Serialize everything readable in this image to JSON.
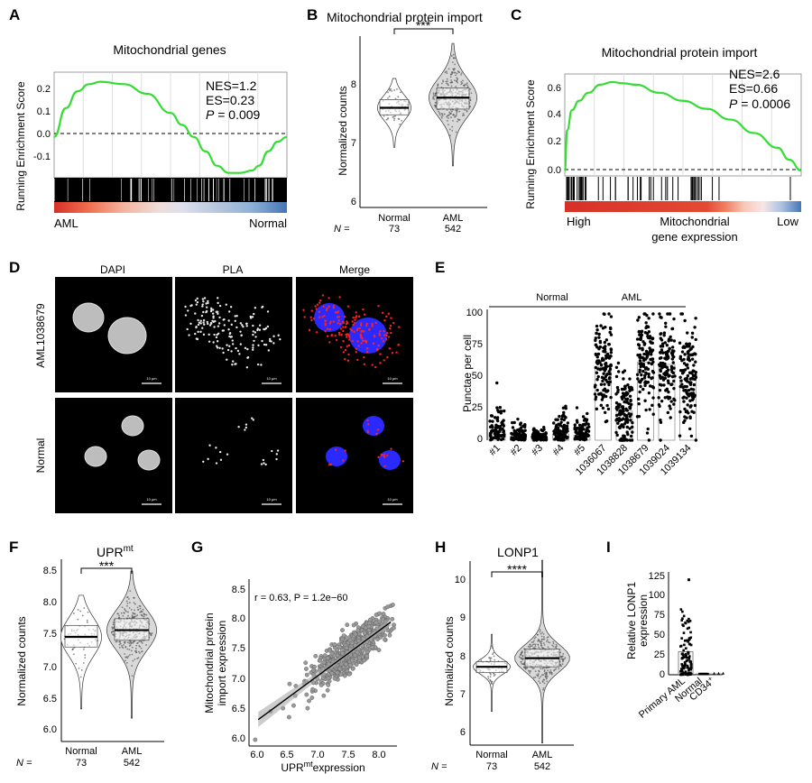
{
  "panels": {
    "A": {
      "letter": "A",
      "title": "Mitochondrial genes",
      "ylabel": "Running Enrichment Score",
      "yticks": [
        "0.2",
        "0.1",
        "0.0",
        "-0.1"
      ],
      "nes": "NES=1.2",
      "es": "ES=0.23",
      "p_label": "P",
      "p_value": " = 0.009",
      "left_label": "AML",
      "right_label": "Normal"
    },
    "B": {
      "letter": "B",
      "title": "Mitochondrial protein import",
      "ylabel": "Normalized counts",
      "yticks": [
        "8",
        "7",
        "6"
      ],
      "sig": "***",
      "n_label": "N =",
      "groups": [
        {
          "name": "Normal",
          "n": "73"
        },
        {
          "name": "AML",
          "n": "542"
        }
      ]
    },
    "C": {
      "letter": "C",
      "title": "Mitochondrial protein import",
      "ylabel": "Running Enrichment Score",
      "yticks": [
        "0.6",
        "0.4",
        "0.2",
        "0.0"
      ],
      "nes": "NES=2.6",
      "es": "ES=0.66",
      "p_label": "P",
      "p_value": " = 0.0006",
      "left_label": "High",
      "mid_label_1": "Mitochondrial",
      "mid_label_2": "gene expression",
      "right_label": "Low"
    },
    "D": {
      "letter": "D",
      "columns": [
        "DAPI",
        "PLA",
        "Merge"
      ],
      "rows": [
        "AML1038679",
        "Normal"
      ],
      "scalebar": "10 µm"
    },
    "E": {
      "letter": "E",
      "ylabel": "Punctae per cell",
      "yticks": [
        "100",
        "75",
        "50",
        "25",
        "0"
      ],
      "group_normal": "Normal",
      "group_aml": "AML",
      "categories": [
        "#1",
        "#2",
        "#3",
        "#4",
        "#5",
        "1036067",
        "1038828",
        "1038679",
        "1039024",
        "1039134"
      ]
    },
    "F": {
      "letter": "F",
      "title_main": "UPR",
      "title_sup": "mt",
      "ylabel": "Normalized counts",
      "yticks": [
        "8.5",
        "8.0",
        "7.5",
        "7.0",
        "6.5",
        "6.0"
      ],
      "sig": "***",
      "n_label": "N =",
      "groups": [
        {
          "name": "Normal",
          "n": "73"
        },
        {
          "name": "AML",
          "n": "542"
        }
      ]
    },
    "G": {
      "letter": "G",
      "annotation": "r = 0.63, P = 1.2e−60",
      "ylabel_1": "Mitochondrial protein",
      "ylabel_2": "import expression",
      "xlabel_main": "UPR",
      "xlabel_sup": "mt",
      "xlabel_rest": "expression",
      "yticks": [
        "8.5",
        "8.0",
        "7.5",
        "7.0",
        "6.5",
        "6.0"
      ],
      "xticks": [
        "6.0",
        "6.5",
        "7.0",
        "7.5",
        "8.0"
      ]
    },
    "H": {
      "letter": "H",
      "title": "LONP1",
      "ylabel": "Normalized counts",
      "yticks": [
        "10",
        "9",
        "8",
        "7",
        "6"
      ],
      "sig": "****",
      "n_label": "N =",
      "groups": [
        {
          "name": "Normal",
          "n": "73"
        },
        {
          "name": "AML",
          "n": "542"
        }
      ]
    },
    "I": {
      "letter": "I",
      "ylabel_1": "Relative LONP1",
      "ylabel_2": "expression",
      "yticks": [
        "125",
        "100",
        "75",
        "50",
        "25",
        "0"
      ],
      "categories_main": [
        "Primary AML",
        "Normal",
        "CD34"
      ],
      "cd34_sup": "+"
    }
  },
  "colors": {
    "enrichment_line": "#33dd33",
    "ranking_red": "#d73027",
    "ranking_blue": "#4575b4",
    "violin_fill": "#d9d9d9",
    "pla_red": "#ff2020",
    "nuclei_blue": "#2020ff"
  },
  "chart_data": [
    {
      "type": "line",
      "panel": "A",
      "title": "Mitochondrial genes",
      "ylabel": "Running Enrichment Score",
      "ylim": [
        -0.17,
        0.27
      ],
      "x": [
        0,
        0.05,
        0.1,
        0.15,
        0.2,
        0.3,
        0.4,
        0.5,
        0.55,
        0.6,
        0.65,
        0.7,
        0.75,
        0.8,
        0.85,
        0.88,
        0.92,
        0.96,
        1.0
      ],
      "y": [
        0,
        0.12,
        0.19,
        0.22,
        0.23,
        0.22,
        0.18,
        0.1,
        0.05,
        0.0,
        -0.06,
        -0.12,
        -0.15,
        -0.15,
        -0.14,
        -0.12,
        -0.06,
        -0.02,
        0
      ]
    },
    {
      "type": "line",
      "panel": "C",
      "title": "Mitochondrial protein import",
      "ylabel": "Running Enrichment Score",
      "ylim": [
        -0.04,
        0.72
      ],
      "x": [
        0,
        0.01,
        0.03,
        0.06,
        0.1,
        0.15,
        0.2,
        0.25,
        0.3,
        0.4,
        0.5,
        0.6,
        0.7,
        0.8,
        0.9,
        0.95,
        1.0
      ],
      "y": [
        0,
        0.3,
        0.45,
        0.52,
        0.58,
        0.64,
        0.66,
        0.65,
        0.64,
        0.58,
        0.52,
        0.46,
        0.38,
        0.28,
        0.17,
        0.08,
        0
      ]
    },
    {
      "type": "violin",
      "panel": "B",
      "ylabel": "Normalized counts",
      "ylim": [
        5.9,
        8.6
      ],
      "groups": [
        "Normal",
        "AML"
      ],
      "medians": [
        7.47,
        7.63
      ],
      "q1": [
        7.36,
        7.45
      ],
      "q3": [
        7.6,
        7.78
      ]
    },
    {
      "type": "bar",
      "panel": "E",
      "ylabel": "Punctae per cell",
      "ylim": [
        0,
        100
      ],
      "categories": [
        "#1",
        "#2",
        "#3",
        "#4",
        "#5",
        "1036067",
        "1038828",
        "1038679",
        "1039024",
        "1039134"
      ],
      "values": [
        6,
        3,
        2,
        5,
        4,
        58,
        23,
        62,
        60,
        48
      ]
    },
    {
      "type": "violin",
      "panel": "F",
      "ylabel": "Normalized counts",
      "ylim": [
        5.9,
        8.6
      ],
      "groups": [
        "Normal",
        "AML"
      ],
      "medians": [
        7.45,
        7.55
      ],
      "q1": [
        7.3,
        7.4
      ],
      "q3": [
        7.62,
        7.72
      ]
    },
    {
      "type": "scatter",
      "panel": "G",
      "xlim": [
        5.85,
        8.25
      ],
      "ylim": [
        5.9,
        8.55
      ],
      "fit": {
        "slope": 0.72,
        "intercept": 2.0
      }
    },
    {
      "type": "violin",
      "panel": "H",
      "ylabel": "Normalized counts",
      "ylim": [
        5.8,
        10.5
      ],
      "groups": [
        "Normal",
        "AML"
      ],
      "medians": [
        7.8,
        8.02
      ],
      "q1": [
        7.65,
        7.8
      ],
      "q3": [
        7.93,
        8.25
      ]
    },
    {
      "type": "bar",
      "panel": "I",
      "ylim": [
        0,
        130
      ],
      "categories": [
        "Primary AML",
        "Normal",
        "CD34+"
      ],
      "values": [
        30,
        1,
        1
      ]
    }
  ]
}
